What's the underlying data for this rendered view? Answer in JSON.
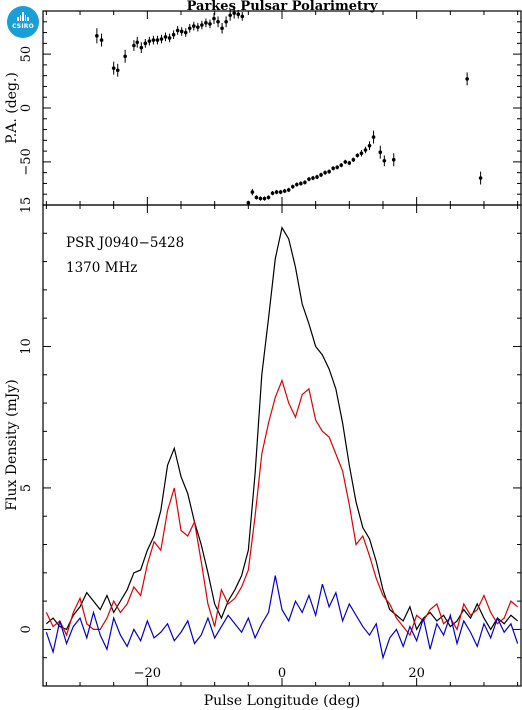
{
  "chart_data": [
    {
      "type": "scatter",
      "title": "Parkes Pulsar Polarimetry",
      "ylabel": "P.A. (deg.)",
      "xlim": [
        -35.5,
        35.5
      ],
      "ylim": [
        -90,
        90
      ],
      "yticks": [
        50,
        0,
        -50
      ],
      "grid": false,
      "series": [
        {
          "x": [
            -27.5,
            -26.8,
            -25.0,
            -24.4,
            -23.3,
            -22.0,
            -21.5,
            -20.9,
            -20.3,
            -19.7,
            -19.1,
            -18.5,
            -17.9,
            -17.3,
            -16.7,
            -16.1,
            -15.5,
            -14.9,
            -14.3,
            -13.7,
            -13.1,
            -12.5,
            -11.9,
            -11.3,
            -10.7,
            -10.1,
            -9.5,
            -8.9,
            -8.3,
            -7.7,
            -7.1,
            -6.5,
            -5.9
          ],
          "y": [
            67,
            63,
            37,
            35,
            48,
            58,
            61,
            56,
            60,
            62,
            63,
            63,
            64,
            66,
            65,
            68,
            72,
            71,
            70,
            74,
            76,
            75,
            77,
            79,
            78,
            83,
            80,
            74,
            80,
            86,
            88,
            87,
            85
          ],
          "err": [
            7,
            6,
            6,
            6,
            6,
            5,
            5,
            5,
            4,
            4,
            4,
            4,
            4,
            4,
            4,
            4,
            4,
            4,
            4,
            4,
            4,
            4,
            4,
            4,
            4,
            5,
            5,
            5,
            5,
            5,
            5,
            4,
            4
          ]
        },
        {
          "x": [
            -5.0,
            -4.4,
            -3.8,
            -3.2,
            -2.6,
            -2.0,
            -1.4,
            -0.8,
            -0.2,
            0.4,
            1.0,
            1.6,
            2.2,
            2.8,
            3.4,
            4.0,
            4.6,
            5.2,
            5.8,
            6.4,
            7.0,
            7.6,
            8.2,
            8.8,
            9.4,
            10.0,
            10.6,
            11.2,
            11.8,
            12.4,
            13.0,
            13.6,
            14.6,
            15.2,
            16.6,
            27.5,
            29.5
          ],
          "y": [
            -88,
            -78,
            -83,
            -84,
            -84,
            -83,
            -79,
            -78,
            -78,
            -77,
            -76,
            -73,
            -71,
            -70,
            -69,
            -66,
            -65,
            -64,
            -62,
            -60,
            -59,
            -56,
            -55,
            -53,
            -50,
            -51,
            -48,
            -44,
            -42,
            -39,
            -35,
            -27,
            -41,
            -49,
            -48,
            27,
            -65
          ],
          "err": [
            2,
            3,
            2,
            2,
            2,
            2,
            2,
            2,
            2,
            2,
            2,
            2,
            2,
            2,
            2,
            2,
            2,
            2,
            2,
            2,
            2,
            2,
            2,
            2,
            2,
            2,
            2,
            2,
            3,
            3,
            4,
            6,
            6,
            5,
            6,
            6,
            6
          ]
        }
      ]
    },
    {
      "type": "line",
      "xlabel": "Pulse Longitude (deg)",
      "ylabel": "Flux Density (mJy)",
      "xlim": [
        -35.5,
        35.5
      ],
      "ylim": [
        -2,
        15
      ],
      "xticks": [
        -20,
        0,
        20
      ],
      "yticks": [
        0,
        5,
        10,
        15
      ],
      "grid": false,
      "annotations": [
        "PSR J0940−5428",
        "1370 MHz"
      ],
      "x": [
        -35,
        -34,
        -33,
        -32,
        -31,
        -30,
        -29,
        -28,
        -27,
        -26,
        -25,
        -24,
        -23,
        -22,
        -21,
        -20,
        -19,
        -18,
        -17,
        -16,
        -15,
        -14,
        -13,
        -12,
        -11,
        -10,
        -9,
        -8,
        -7,
        -6,
        -5,
        -4,
        -3,
        -2,
        -1,
        0,
        1,
        2,
        3,
        4,
        5,
        6,
        7,
        8,
        9,
        10,
        11,
        12,
        13,
        14,
        15,
        16,
        17,
        18,
        19,
        20,
        21,
        22,
        23,
        24,
        25,
        26,
        27,
        28,
        29,
        30,
        31,
        32,
        33,
        34,
        35
      ],
      "series": [
        {
          "color": "#000000",
          "values": [
            0.2,
            0.4,
            0.1,
            0.0,
            0.5,
            0.8,
            1.3,
            1.0,
            0.7,
            1.2,
            0.6,
            1.0,
            1.4,
            2.0,
            2.1,
            2.8,
            3.3,
            4.2,
            5.8,
            6.4,
            5.4,
            4.8,
            3.8,
            3.0,
            2.0,
            0.9,
            0.4,
            1.0,
            1.4,
            1.9,
            2.8,
            5.5,
            9.0,
            11.0,
            13.1,
            14.2,
            13.8,
            12.8,
            11.5,
            10.8,
            10.0,
            9.7,
            9.2,
            8.5,
            7.3,
            5.8,
            4.5,
            3.6,
            3.2,
            2.4,
            1.4,
            0.7,
            0.5,
            0.3,
            0.8,
            0.0,
            0.4,
            0.6,
            0.3,
            0.5,
            0.1,
            0.3,
            0.7,
            0.4,
            0.9,
            0.4,
            0.0,
            0.4,
            0.2,
            0.5,
            0.3
          ]
        },
        {
          "color": "#e00000",
          "values": [
            0.6,
            0.1,
            0.3,
            -0.2,
            0.6,
            1.1,
            0.2,
            0.0,
            0.0,
            0.4,
            1.0,
            0.6,
            0.9,
            1.5,
            1.2,
            2.3,
            3.1,
            2.8,
            4.2,
            5.0,
            3.5,
            3.3,
            3.8,
            2.4,
            0.9,
            0.1,
            1.4,
            0.9,
            1.1,
            1.5,
            2.1,
            4.0,
            6.2,
            7.3,
            8.2,
            8.8,
            8.0,
            7.5,
            8.3,
            8.5,
            7.4,
            7.0,
            6.8,
            6.2,
            5.6,
            4.4,
            3.0,
            3.3,
            2.6,
            1.8,
            1.2,
            0.9,
            0.4,
            0.1,
            -0.2,
            0.5,
            0.3,
            0.7,
            0.9,
            0.2,
            0.4,
            0.0,
            0.9,
            0.5,
            0.7,
            1.2,
            0.6,
            0.2,
            0.4,
            1.0,
            0.8
          ]
        },
        {
          "color": "#0000d0",
          "values": [
            -0.1,
            -0.8,
            0.3,
            -0.5,
            0.1,
            0.4,
            -0.3,
            0.6,
            -0.2,
            -0.7,
            0.4,
            -0.2,
            -0.6,
            0.0,
            -0.4,
            0.3,
            -0.3,
            -0.1,
            0.2,
            -0.4,
            -0.1,
            0.3,
            -0.5,
            -0.2,
            0.4,
            -0.3,
            0.1,
            0.5,
            0.2,
            -0.1,
            0.4,
            -0.3,
            0.2,
            0.6,
            1.9,
            0.7,
            0.3,
            1.0,
            0.6,
            1.2,
            0.5,
            1.6,
            0.8,
            1.3,
            0.3,
            0.9,
            0.5,
            0.1,
            -0.2,
            0.2,
            -1.0,
            -0.3,
            0.0,
            -0.6,
            0.1,
            -0.4,
            0.4,
            -0.7,
            0.2,
            -0.2,
            0.5,
            -0.5,
            0.3,
            -0.1,
            -0.6,
            0.2,
            -0.3,
            0.4,
            -0.1,
            0.2,
            -0.5
          ]
        }
      ]
    }
  ],
  "logo": {
    "label": "CSIRO",
    "color": "#1a9ed8"
  }
}
